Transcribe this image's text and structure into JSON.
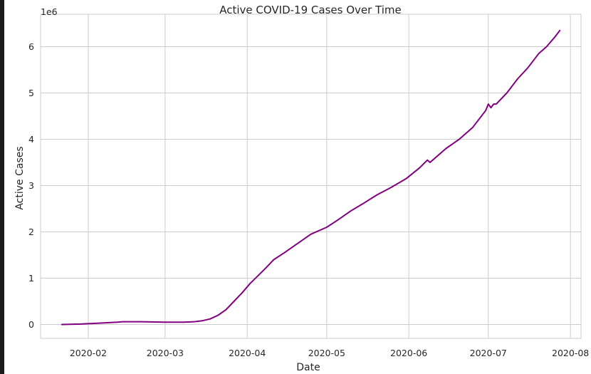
{
  "chart_data": {
    "type": "line",
    "title": "Active COVID-19 Cases Over Time",
    "xlabel": "Date",
    "ylabel": "Active Cases",
    "y_offset_label": "1e6",
    "line_color": "#800080",
    "grid": true,
    "xlim": [
      "2020-01-14",
      "2020-08-05"
    ],
    "ylim": [
      -300000,
      6700000
    ],
    "x_ticks": [
      "2020-02",
      "2020-03",
      "2020-04",
      "2020-05",
      "2020-06",
      "2020-07",
      "2020-08"
    ],
    "y_ticks": [
      0,
      1,
      2,
      3,
      4,
      5,
      6
    ],
    "series": [
      {
        "x": [
          "2020-01-22",
          "2020-01-29",
          "2020-02-05",
          "2020-02-12",
          "2020-02-14",
          "2020-02-21",
          "2020-03-01",
          "2020-03-08",
          "2020-03-12",
          "2020-03-15",
          "2020-03-18",
          "2020-03-21",
          "2020-03-24",
          "2020-03-27",
          "2020-03-30",
          "2020-04-02",
          "2020-04-05",
          "2020-04-08",
          "2020-04-11",
          "2020-04-15",
          "2020-04-20",
          "2020-04-25",
          "2020-05-01",
          "2020-05-05",
          "2020-05-10",
          "2020-05-15",
          "2020-05-20",
          "2020-05-25",
          "2020-05-31",
          "2020-06-05",
          "2020-06-08",
          "2020-06-09",
          "2020-06-12",
          "2020-06-15",
          "2020-06-20",
          "2020-06-25",
          "2020-06-30",
          "2020-07-01",
          "2020-07-02",
          "2020-07-03",
          "2020-07-04",
          "2020-07-08",
          "2020-07-12",
          "2020-07-16",
          "2020-07-20",
          "2020-07-23",
          "2020-07-26",
          "2020-07-28"
        ],
        "y": [
          0,
          10000,
          30000,
          50000,
          60000,
          60000,
          50000,
          50000,
          60000,
          80000,
          120000,
          200000,
          320000,
          500000,
          680000,
          880000,
          1050000,
          1220000,
          1400000,
          1550000,
          1750000,
          1950000,
          2100000,
          2250000,
          2450000,
          2620000,
          2800000,
          2950000,
          3150000,
          3380000,
          3550000,
          3500000,
          3650000,
          3800000,
          4000000,
          4250000,
          4620000,
          4760000,
          4680000,
          4760000,
          4760000,
          5000000,
          5300000,
          5550000,
          5850000,
          6000000,
          6200000,
          6350000
        ]
      }
    ]
  }
}
